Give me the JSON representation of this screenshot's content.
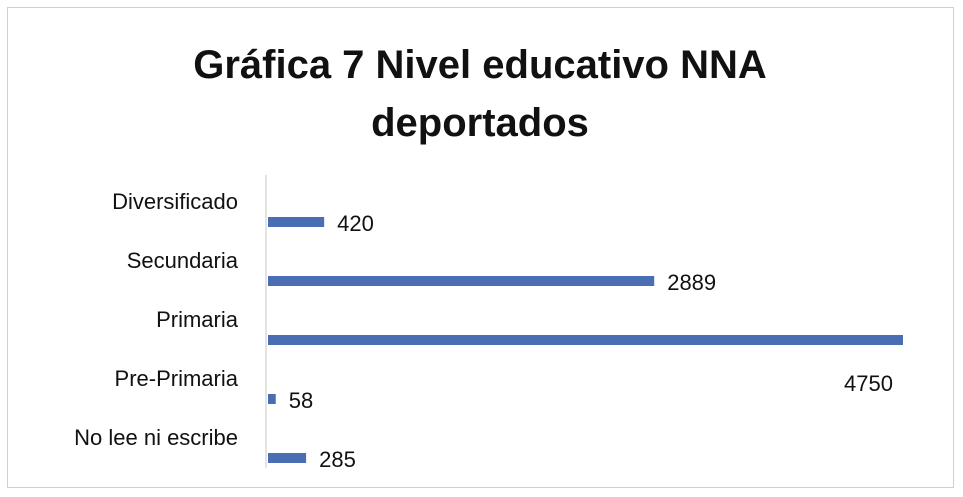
{
  "chart_data": {
    "type": "bar",
    "orientation": "horizontal",
    "title": "Gráfica 7 Nivel educativo NNA deportados",
    "categories": [
      "Diversificado",
      "Secundaria",
      "Primaria",
      "Pre-Primaria",
      "No lee ni escribe"
    ],
    "values": [
      420,
      2889,
      4750,
      58,
      285
    ],
    "color": "#4a6eb3"
  }
}
